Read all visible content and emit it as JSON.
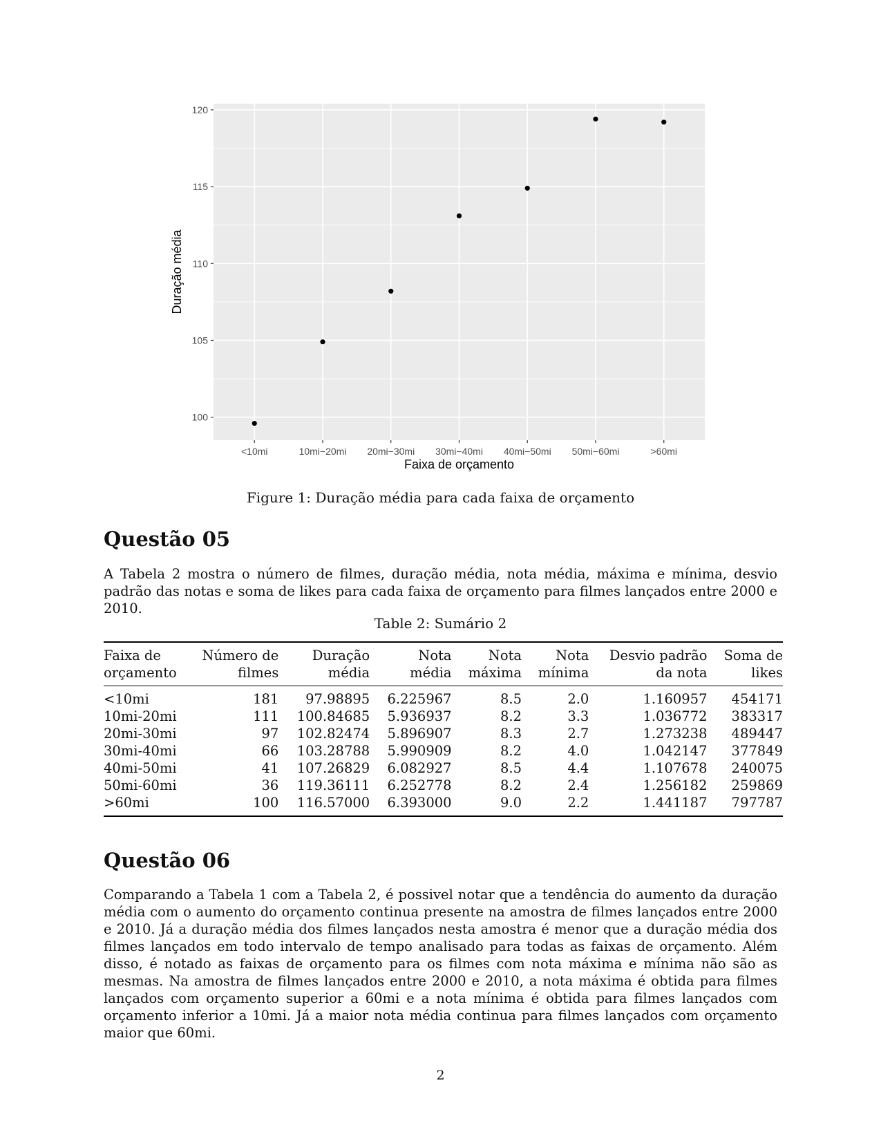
{
  "chart_data": {
    "type": "scatter",
    "xlabel": "Faixa de orçamento",
    "ylabel": "Duração média",
    "categories": [
      "<10mi",
      "10mi−20mi",
      "20mi−30mi",
      "30mi−40mi",
      "40mi−50mi",
      "50mi−60mi",
      ">60mi"
    ],
    "values": [
      99.6,
      104.9,
      108.2,
      113.1,
      114.9,
      119.4,
      119.2
    ],
    "yticks": [
      100,
      105,
      110,
      115,
      120
    ],
    "ylim": [
      98.5,
      120.4
    ],
    "grid": true,
    "background": "#ebebeb",
    "gridline_color": "#ffffff",
    "point_color": "#000000"
  },
  "figure_caption": "Figure 1: Duração média para cada faixa de orçamento",
  "q5": {
    "title": "Questão 05",
    "paragraph": "A Tabela 2 mostra o número de filmes, duração média, nota média, máxima e mínima, desvio padrão das notas e soma de likes para cada faixa de orçamento para filmes lançados entre 2000 e 2010."
  },
  "table": {
    "caption": "Table 2: Sumário 2",
    "headers": [
      [
        "Faixa de",
        "orçamento"
      ],
      [
        "Número de",
        "filmes"
      ],
      [
        "Duração",
        "média"
      ],
      [
        "Nota",
        "média"
      ],
      [
        "Nota",
        "máxima"
      ],
      [
        "Nota",
        "mínima"
      ],
      [
        "Desvio padrão",
        "da nota"
      ],
      [
        "Soma de",
        "likes"
      ]
    ],
    "rows": [
      [
        "<10mi",
        "181",
        "97.98895",
        "6.225967",
        "8.5",
        "2.0",
        "1.160957",
        "454171"
      ],
      [
        "10mi-20mi",
        "111",
        "100.84685",
        "5.936937",
        "8.2",
        "3.3",
        "1.036772",
        "383317"
      ],
      [
        "20mi-30mi",
        "97",
        "102.82474",
        "5.896907",
        "8.3",
        "2.7",
        "1.273238",
        "489447"
      ],
      [
        "30mi-40mi",
        "66",
        "103.28788",
        "5.990909",
        "8.2",
        "4.0",
        "1.042147",
        "377849"
      ],
      [
        "40mi-50mi",
        "41",
        "107.26829",
        "6.082927",
        "8.5",
        "4.4",
        "1.107678",
        "240075"
      ],
      [
        "50mi-60mi",
        "36",
        "119.36111",
        "6.252778",
        "8.2",
        "2.4",
        "1.256182",
        "259869"
      ],
      [
        ">60mi",
        "100",
        "116.57000",
        "6.393000",
        "9.0",
        "2.2",
        "1.441187",
        "797787"
      ]
    ]
  },
  "q6": {
    "title": "Questão 06",
    "paragraph": "Comparando a Tabela 1 com a Tabela 2, é possivel notar que a tendência do aumento da duração média com o aumento do orçamento continua presente na amostra de filmes lançados entre 2000 e 2010. Já a duração média dos filmes lançados nesta amostra é menor que a duração média dos filmes lançados em todo intervalo de tempo analisado para todas as faixas de orçamento. Além disso, é notado as faixas de orçamento para os filmes com nota máxima e mínima não são as mesmas. Na amostra de filmes lançados entre 2000 e 2010, a nota máxima é obtida para filmes lançados com orçamento superior a 60mi e a nota mínima é obtida para filmes lançados com orçamento inferior a 10mi. Já a maior nota média continua para filmes lançados com orçamento maior que 60mi."
  },
  "page_number": "2"
}
